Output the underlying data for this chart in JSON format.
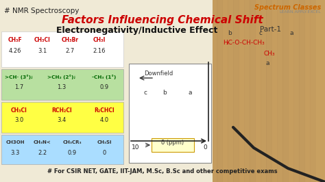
{
  "bg_color": "#f0ead6",
  "title_nmr": "# NMR Spectroscopy",
  "title_main": "Factors Influencing Chemical Shift",
  "title_sub": "Electronegativity/Inductive Effect",
  "title_part": "Part-1",
  "footer": "# For CSIR NET, GATE, IIT-JAM, M.Sc, B.Sc and other competitive exams",
  "table1_bg": "#ffffff",
  "table1_labels": [
    "CH₃F",
    "CH₃Cl",
    "CH₃Br",
    "CH₃I"
  ],
  "table1_values": [
    "4.26",
    "3.1",
    "2.7",
    "2.16"
  ],
  "table2_bg": "#b8e0a0",
  "table2_labels": [
    ">CH· (3°);",
    ">CH₂ (2°);",
    "-CH₃ (1°)"
  ],
  "table2_values": [
    "1.7",
    "1.3",
    "0.9"
  ],
  "table3_bg": "#ffff44",
  "table3_labels": [
    "CH₃Cl",
    "RCH₂Cl",
    "R₂CHCl"
  ],
  "table3_values": [
    "3.0",
    "3.4",
    "4.0"
  ],
  "table4_bg": "#aaddff",
  "table4_labels": [
    "CH3OH",
    "CH₃N<",
    "CH₃CR₃",
    "CH₃Si"
  ],
  "table4_values": [
    "3.3",
    "2.2",
    "0.9",
    "0"
  ],
  "graph_bg": "#ffffff",
  "right_bg": "#c8a060",
  "label_red": "#cc0000",
  "label_green": "#006600",
  "label_dark": "#222222",
  "label_blue": "#0000cc"
}
